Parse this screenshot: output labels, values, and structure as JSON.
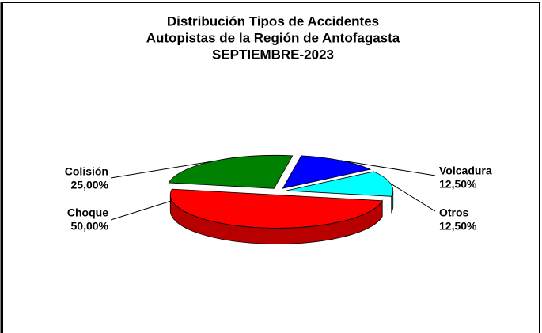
{
  "chart_data": {
    "type": "pie",
    "title": [
      "Distribución Tipos de Accidentes",
      "Autopistas de la Región de Antofagasta",
      "SEPTIEMBRE-2023"
    ],
    "categories": [
      "Choque",
      "Colisión",
      "Volcadura",
      "Otros"
    ],
    "values": [
      50,
      25,
      12.5,
      12.5
    ],
    "value_labels": [
      "50,00%",
      "25,00%",
      "12,50%",
      "12,50%"
    ],
    "colors": [
      "#ff0000",
      "#008000",
      "#0000ff",
      "#00ffff"
    ]
  }
}
